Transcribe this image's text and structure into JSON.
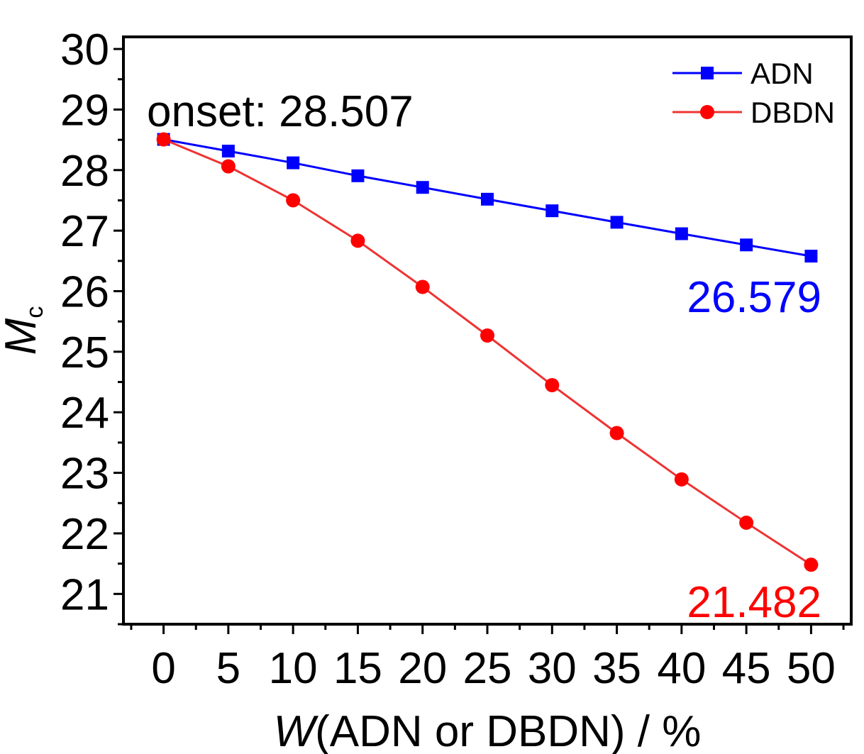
{
  "chart_data": {
    "type": "line",
    "title": "",
    "xlabel_italic": "W",
    "xlabel_rest": "(ADN or DBDN) / %",
    "ylabel_italic": "M",
    "ylabel_sub": "c",
    "xlim": [
      -3.1,
      53.1
    ],
    "ylim": [
      20.5,
      30.2
    ],
    "x": [
      0,
      5,
      10,
      15,
      20,
      25,
      30,
      35,
      40,
      45,
      50
    ],
    "x_ticks": [
      "0",
      "5",
      "10",
      "15",
      "20",
      "25",
      "30",
      "35",
      "40",
      "45",
      "50"
    ],
    "y_ticks": [
      "21",
      "22",
      "23",
      "24",
      "25",
      "26",
      "27",
      "28",
      "29",
      "30"
    ],
    "legend_position": "top-right",
    "series": [
      {
        "name": "ADN",
        "color": "#0000ff",
        "marker": "square",
        "values": [
          28.507,
          28.314,
          28.12,
          27.906,
          27.714,
          27.519,
          27.328,
          27.138,
          26.949,
          26.764,
          26.579
        ]
      },
      {
        "name": "DBDN",
        "color": "#ee3333",
        "marker_color": "#ff0000",
        "marker": "circle",
        "values": [
          28.507,
          28.062,
          27.501,
          26.833,
          26.07,
          25.268,
          24.448,
          23.657,
          22.892,
          22.176,
          21.482
        ]
      }
    ],
    "annotations": [
      {
        "text": "onset: 28.507",
        "color": "#000000"
      },
      {
        "text": "26.579",
        "color": "#0000ff"
      },
      {
        "text": "21.482",
        "color": "#ff0000"
      }
    ]
  }
}
